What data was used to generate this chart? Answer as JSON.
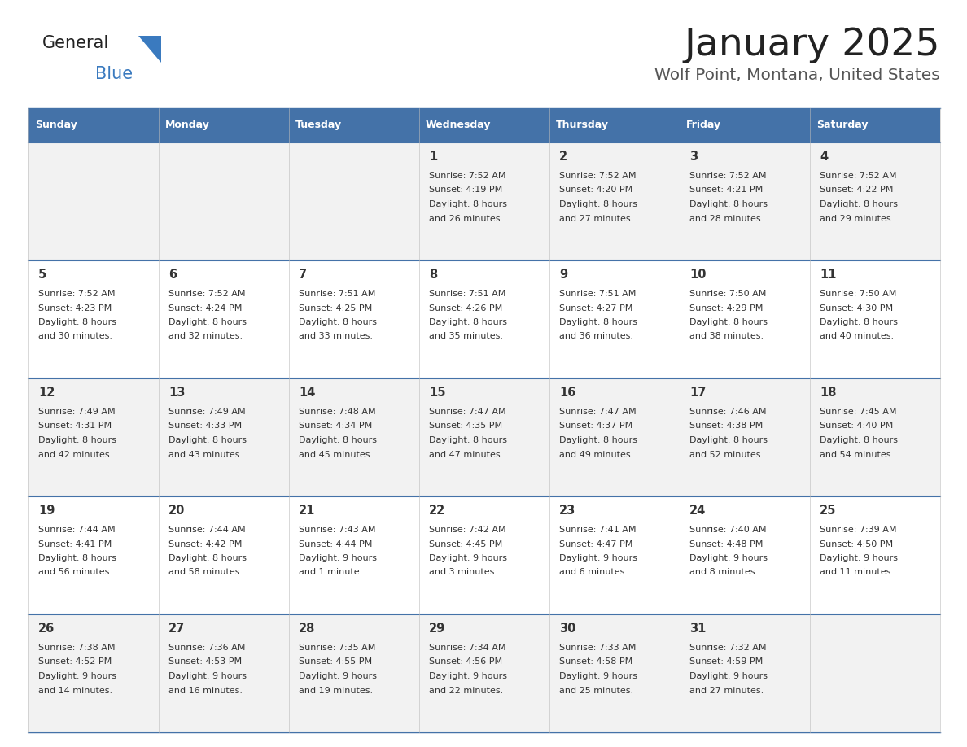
{
  "title": "January 2025",
  "subtitle": "Wolf Point, Montana, United States",
  "header_color": "#4472a8",
  "header_text_color": "#ffffff",
  "cell_bg_odd": "#f2f2f2",
  "cell_bg_even": "#ffffff",
  "border_color": "#4472a8",
  "text_color": "#333333",
  "day_names": [
    "Sunday",
    "Monday",
    "Tuesday",
    "Wednesday",
    "Thursday",
    "Friday",
    "Saturday"
  ],
  "days": [
    {
      "day": 1,
      "col": 3,
      "row": 0,
      "sunrise": "7:52 AM",
      "sunset": "4:19 PM",
      "daylight_h": "8 hours",
      "daylight_m": "26 minutes."
    },
    {
      "day": 2,
      "col": 4,
      "row": 0,
      "sunrise": "7:52 AM",
      "sunset": "4:20 PM",
      "daylight_h": "8 hours",
      "daylight_m": "27 minutes."
    },
    {
      "day": 3,
      "col": 5,
      "row": 0,
      "sunrise": "7:52 AM",
      "sunset": "4:21 PM",
      "daylight_h": "8 hours",
      "daylight_m": "28 minutes."
    },
    {
      "day": 4,
      "col": 6,
      "row": 0,
      "sunrise": "7:52 AM",
      "sunset": "4:22 PM",
      "daylight_h": "8 hours",
      "daylight_m": "29 minutes."
    },
    {
      "day": 5,
      "col": 0,
      "row": 1,
      "sunrise": "7:52 AM",
      "sunset": "4:23 PM",
      "daylight_h": "8 hours",
      "daylight_m": "30 minutes."
    },
    {
      "day": 6,
      "col": 1,
      "row": 1,
      "sunrise": "7:52 AM",
      "sunset": "4:24 PM",
      "daylight_h": "8 hours",
      "daylight_m": "32 minutes."
    },
    {
      "day": 7,
      "col": 2,
      "row": 1,
      "sunrise": "7:51 AM",
      "sunset": "4:25 PM",
      "daylight_h": "8 hours",
      "daylight_m": "33 minutes."
    },
    {
      "day": 8,
      "col": 3,
      "row": 1,
      "sunrise": "7:51 AM",
      "sunset": "4:26 PM",
      "daylight_h": "8 hours",
      "daylight_m": "35 minutes."
    },
    {
      "day": 9,
      "col": 4,
      "row": 1,
      "sunrise": "7:51 AM",
      "sunset": "4:27 PM",
      "daylight_h": "8 hours",
      "daylight_m": "36 minutes."
    },
    {
      "day": 10,
      "col": 5,
      "row": 1,
      "sunrise": "7:50 AM",
      "sunset": "4:29 PM",
      "daylight_h": "8 hours",
      "daylight_m": "38 minutes."
    },
    {
      "day": 11,
      "col": 6,
      "row": 1,
      "sunrise": "7:50 AM",
      "sunset": "4:30 PM",
      "daylight_h": "8 hours",
      "daylight_m": "40 minutes."
    },
    {
      "day": 12,
      "col": 0,
      "row": 2,
      "sunrise": "7:49 AM",
      "sunset": "4:31 PM",
      "daylight_h": "8 hours",
      "daylight_m": "42 minutes."
    },
    {
      "day": 13,
      "col": 1,
      "row": 2,
      "sunrise": "7:49 AM",
      "sunset": "4:33 PM",
      "daylight_h": "8 hours",
      "daylight_m": "43 minutes."
    },
    {
      "day": 14,
      "col": 2,
      "row": 2,
      "sunrise": "7:48 AM",
      "sunset": "4:34 PM",
      "daylight_h": "8 hours",
      "daylight_m": "45 minutes."
    },
    {
      "day": 15,
      "col": 3,
      "row": 2,
      "sunrise": "7:47 AM",
      "sunset": "4:35 PM",
      "daylight_h": "8 hours",
      "daylight_m": "47 minutes."
    },
    {
      "day": 16,
      "col": 4,
      "row": 2,
      "sunrise": "7:47 AM",
      "sunset": "4:37 PM",
      "daylight_h": "8 hours",
      "daylight_m": "49 minutes."
    },
    {
      "day": 17,
      "col": 5,
      "row": 2,
      "sunrise": "7:46 AM",
      "sunset": "4:38 PM",
      "daylight_h": "8 hours",
      "daylight_m": "52 minutes."
    },
    {
      "day": 18,
      "col": 6,
      "row": 2,
      "sunrise": "7:45 AM",
      "sunset": "4:40 PM",
      "daylight_h": "8 hours",
      "daylight_m": "54 minutes."
    },
    {
      "day": 19,
      "col": 0,
      "row": 3,
      "sunrise": "7:44 AM",
      "sunset": "4:41 PM",
      "daylight_h": "8 hours",
      "daylight_m": "56 minutes."
    },
    {
      "day": 20,
      "col": 1,
      "row": 3,
      "sunrise": "7:44 AM",
      "sunset": "4:42 PM",
      "daylight_h": "8 hours",
      "daylight_m": "58 minutes."
    },
    {
      "day": 21,
      "col": 2,
      "row": 3,
      "sunrise": "7:43 AM",
      "sunset": "4:44 PM",
      "daylight_h": "9 hours",
      "daylight_m": "1 minute."
    },
    {
      "day": 22,
      "col": 3,
      "row": 3,
      "sunrise": "7:42 AM",
      "sunset": "4:45 PM",
      "daylight_h": "9 hours",
      "daylight_m": "3 minutes."
    },
    {
      "day": 23,
      "col": 4,
      "row": 3,
      "sunrise": "7:41 AM",
      "sunset": "4:47 PM",
      "daylight_h": "9 hours",
      "daylight_m": "6 minutes."
    },
    {
      "day": 24,
      "col": 5,
      "row": 3,
      "sunrise": "7:40 AM",
      "sunset": "4:48 PM",
      "daylight_h": "9 hours",
      "daylight_m": "8 minutes."
    },
    {
      "day": 25,
      "col": 6,
      "row": 3,
      "sunrise": "7:39 AM",
      "sunset": "4:50 PM",
      "daylight_h": "9 hours",
      "daylight_m": "11 minutes."
    },
    {
      "day": 26,
      "col": 0,
      "row": 4,
      "sunrise": "7:38 AM",
      "sunset": "4:52 PM",
      "daylight_h": "9 hours",
      "daylight_m": "14 minutes."
    },
    {
      "day": 27,
      "col": 1,
      "row": 4,
      "sunrise": "7:36 AM",
      "sunset": "4:53 PM",
      "daylight_h": "9 hours",
      "daylight_m": "16 minutes."
    },
    {
      "day": 28,
      "col": 2,
      "row": 4,
      "sunrise": "7:35 AM",
      "sunset": "4:55 PM",
      "daylight_h": "9 hours",
      "daylight_m": "19 minutes."
    },
    {
      "day": 29,
      "col": 3,
      "row": 4,
      "sunrise": "7:34 AM",
      "sunset": "4:56 PM",
      "daylight_h": "9 hours",
      "daylight_m": "22 minutes."
    },
    {
      "day": 30,
      "col": 4,
      "row": 4,
      "sunrise": "7:33 AM",
      "sunset": "4:58 PM",
      "daylight_h": "9 hours",
      "daylight_m": "25 minutes."
    },
    {
      "day": 31,
      "col": 5,
      "row": 4,
      "sunrise": "7:32 AM",
      "sunset": "4:59 PM",
      "daylight_h": "9 hours",
      "daylight_m": "27 minutes."
    }
  ]
}
